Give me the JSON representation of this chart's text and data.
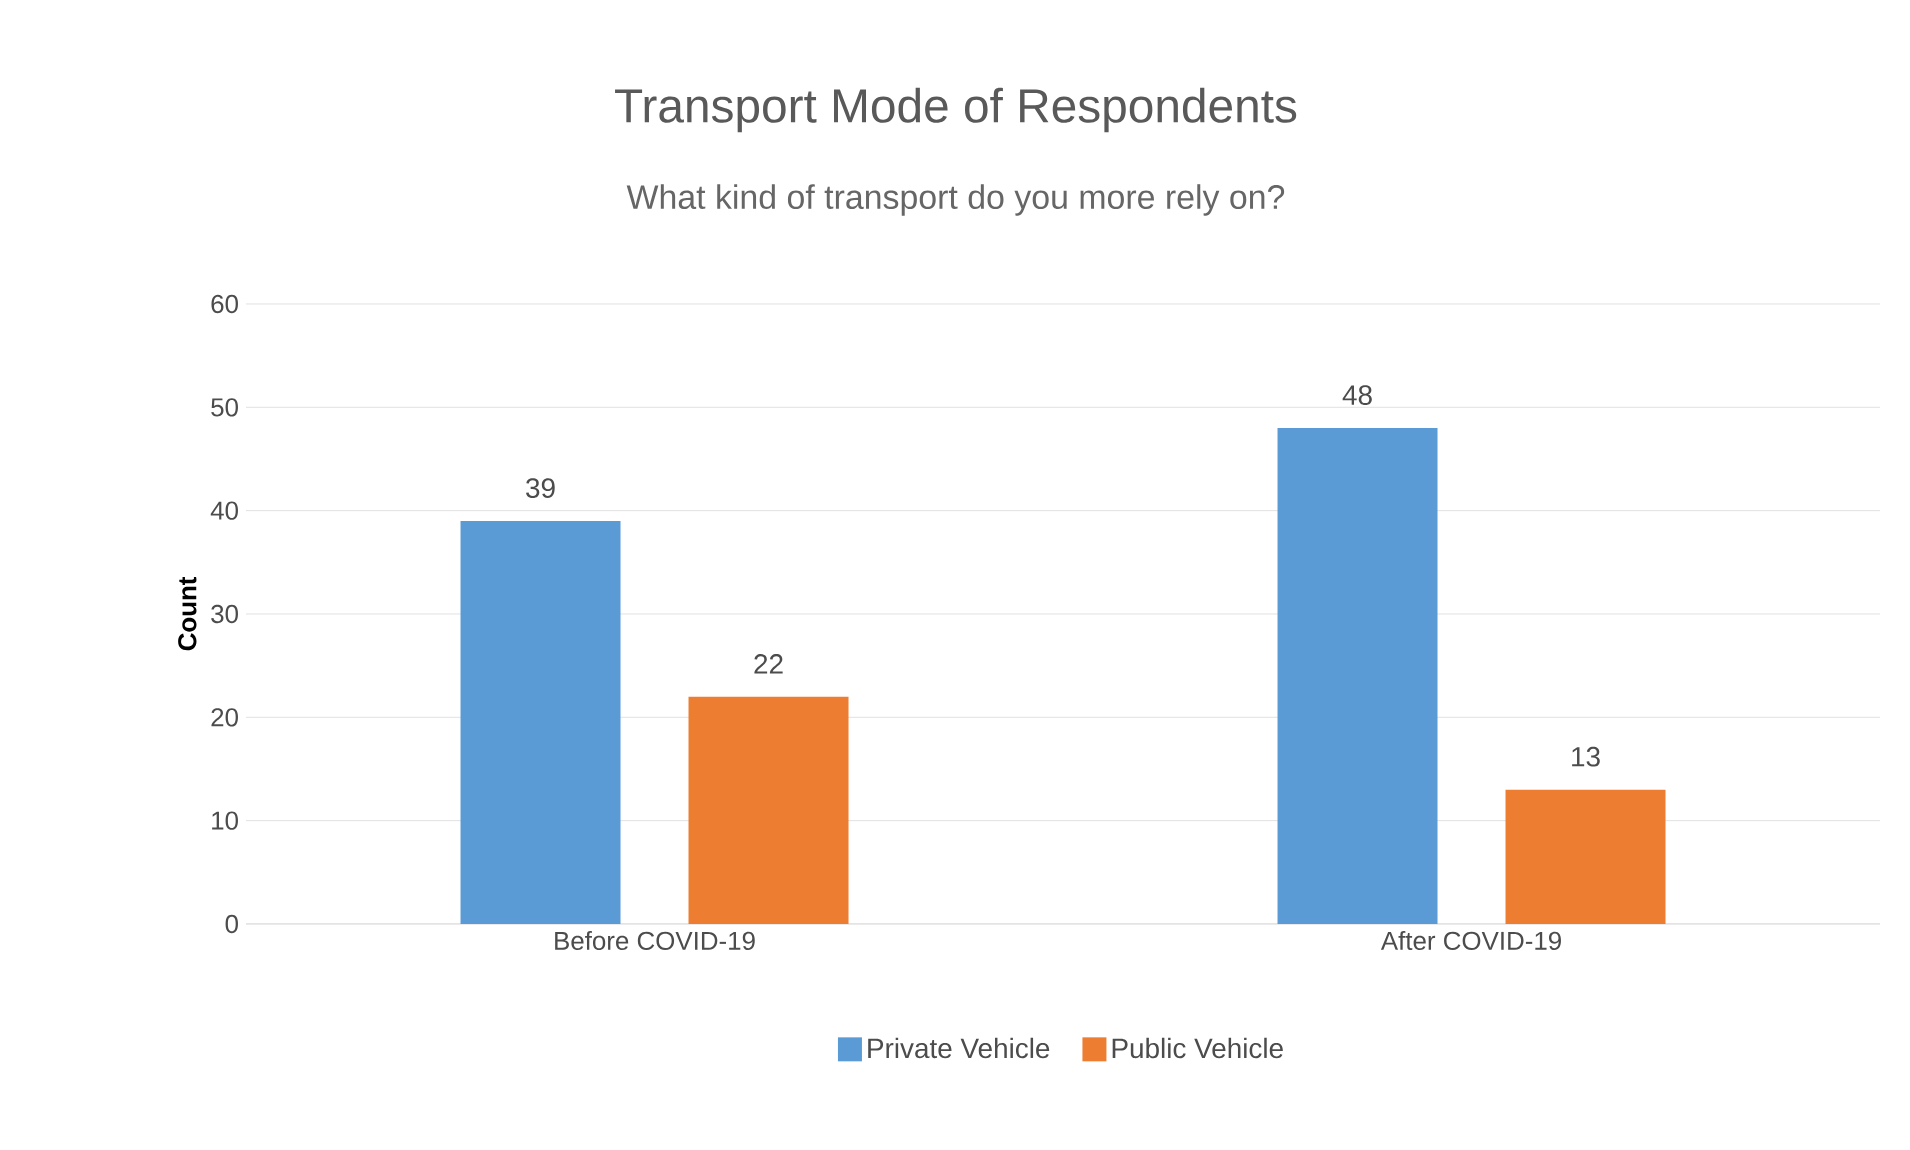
{
  "chart_data": {
    "type": "bar",
    "title": "Transport Mode of Respondents",
    "subtitle": "What kind of transport do you more rely on?",
    "ylabel": "Count",
    "categories": [
      "Before COVID-19",
      "After COVID-19"
    ],
    "series": [
      {
        "name": "Private Vehicle",
        "color": "#5b9bd5",
        "values": [
          39,
          48
        ]
      },
      {
        "name": "Public Vehicle",
        "color": "#ed7d31",
        "values": [
          22,
          13
        ]
      }
    ],
    "ylim": [
      0,
      60
    ],
    "yticks": [
      0,
      10,
      20,
      30,
      40,
      50,
      60
    ],
    "grid": "y",
    "legend": "bottom",
    "data_labels": true
  }
}
